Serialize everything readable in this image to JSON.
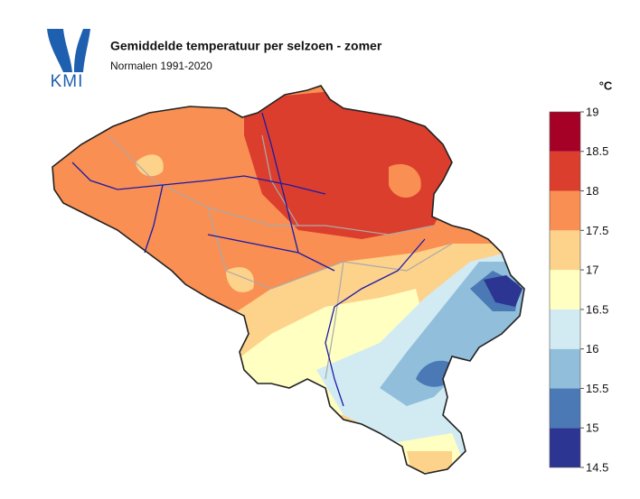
{
  "header": {
    "logo": "KMI",
    "title": "Gemiddelde temperatuur per selzoen - zomer",
    "subtitle": "Normalen 1991-2020"
  },
  "legend": {
    "unit": "°C",
    "ticks": [
      14.5,
      15,
      15.5,
      16,
      16.5,
      17,
      17.5,
      18,
      18.5,
      19
    ],
    "colors": [
      "#2c3591",
      "#4a79b5",
      "#91bfdb",
      "#d2ebf3",
      "#ffffc1",
      "#fdd28a",
      "#f98f53",
      "#dc3e2d",
      "#a50026"
    ]
  }
}
